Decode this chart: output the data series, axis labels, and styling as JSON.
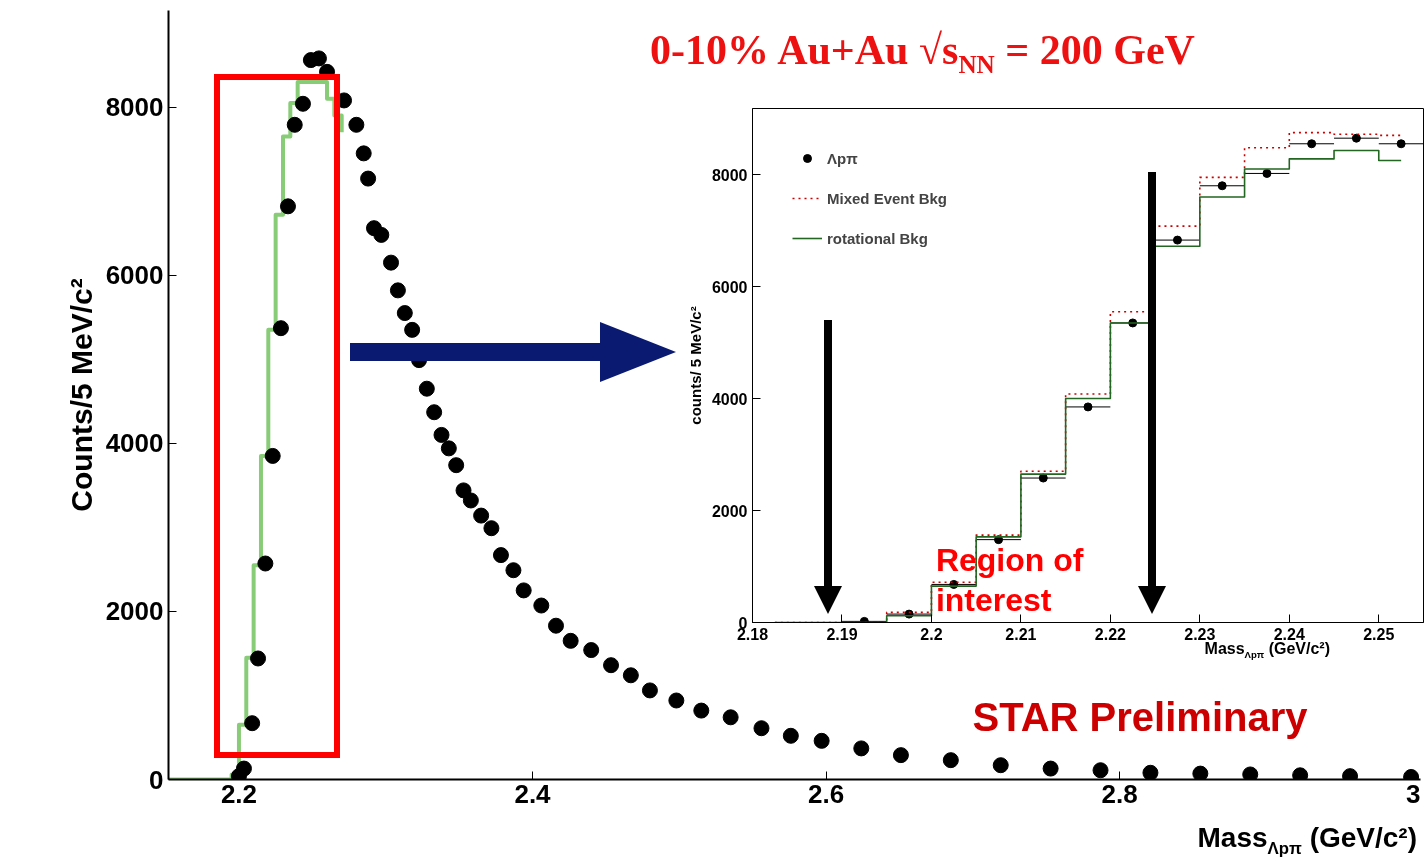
{
  "chart_data": [
    {
      "type": "scatter",
      "title": "0-10% Au+Au √s$_{NN}$ = 200 GeV",
      "xlabel": "Mass$_{Λpπ}$ (GeV/c²)",
      "ylabel": "Counts/5 MeV/c²",
      "xlim": [
        2.152,
        3.005
      ],
      "ylim": [
        0,
        9150
      ],
      "xticks": [
        2.2,
        2.4,
        2.6,
        2.8,
        3
      ],
      "yticks": [
        0,
        2000,
        4000,
        6000,
        8000
      ],
      "grid": false,
      "legend": false,
      "annotations": [
        "STAR Preliminary"
      ],
      "series": [
        {
          "type": "step",
          "color": "#88cc77",
          "x": [
            2.152,
            2.195,
            2.2,
            2.205,
            2.21,
            2.215,
            2.22,
            2.225,
            2.23,
            2.235,
            2.24,
            2.245,
            2.25,
            2.255,
            2.26,
            2.265,
            2.27
          ],
          "values": [
            0,
            60,
            650,
            1450,
            2550,
            3850,
            5350,
            6720,
            7650,
            8050,
            8300,
            8300,
            8300,
            8300,
            8100,
            7900,
            7700
          ]
        },
        {
          "color": "#000000",
          "marker": "circle",
          "x": [
            2.2,
            2.2034,
            2.209,
            2.213,
            2.218,
            2.223,
            2.2286,
            2.2334,
            2.238,
            2.2436,
            2.249,
            2.2545,
            2.26,
            2.2716,
            2.28,
            2.285,
            2.288,
            2.292,
            2.297,
            2.3036,
            2.3083,
            2.313,
            2.318,
            2.3227,
            2.328,
            2.333,
            2.338,
            2.343,
            2.348,
            2.353,
            2.358,
            2.365,
            2.372,
            2.3785,
            2.387,
            2.394,
            2.406,
            2.416,
            2.426,
            2.44,
            2.4535,
            2.467,
            2.48,
            2.498,
            2.515,
            2.535,
            2.556,
            2.576,
            2.597,
            2.624,
            2.651,
            2.685,
            2.719,
            2.753,
            2.787,
            2.821,
            2.855,
            2.889,
            2.923,
            2.957,
            2.9986
          ],
          "values": [
            40,
            130,
            670,
            1440,
            2570,
            3850,
            5370,
            6820,
            7790,
            8040,
            8560,
            8580,
            8420,
            8080,
            7790,
            7450,
            7150,
            6560,
            6480,
            6150,
            5820,
            5550,
            5350,
            4990,
            4650,
            4370,
            4100,
            3940,
            3740,
            3440,
            3320,
            3140,
            2990,
            2670,
            2490,
            2250,
            2070,
            1830,
            1650,
            1540,
            1360,
            1240,
            1060,
            940,
            820,
            740,
            610,
            520,
            460,
            370,
            290,
            230,
            170,
            130,
            110,
            80,
            70,
            60,
            50,
            40,
            30
          ]
        }
      ]
    },
    {
      "type": "scatter",
      "xlabel": "Mass$_{Λpπ}$ (GeV/c²)",
      "ylabel": "counts/ 5 MeV/c²",
      "xlim": [
        2.18,
        2.255
      ],
      "ylim": [
        0,
        9180
      ],
      "xticks": [
        2.18,
        2.19,
        2.2,
        2.21,
        2.22,
        2.23,
        2.24,
        2.25
      ],
      "yticks": [
        0,
        2000,
        4000,
        6000,
        8000
      ],
      "grid": false,
      "legend": "top left",
      "annotations": [
        "Region of interest"
      ],
      "series": [
        {
          "name": "Λpπ",
          "color": "#000000",
          "marker": "circle",
          "x": [
            2.1925,
            2.1975,
            2.2025,
            2.2075,
            2.2125,
            2.2175,
            2.2225,
            2.2275,
            2.2325,
            2.2375,
            2.2425,
            2.2475,
            2.2525
          ],
          "values": [
            20,
            150,
            680,
            1480,
            2580,
            3850,
            5350,
            6830,
            7800,
            8020,
            8550,
            8650,
            8550
          ],
          "xerrors": [
            0.0025,
            0.0025,
            0.0025,
            0.0025,
            0.0025,
            0.0025,
            0.0025,
            0.0025,
            0.0025,
            0.0025,
            0.0025,
            0.0025,
            0.0025
          ]
        },
        {
          "type": "step",
          "name": "Mixed Event Bkg",
          "color": "#cc0000",
          "line_style": "dotted",
          "x": [
            2.1825,
            2.1875,
            2.1925,
            2.1975,
            2.2025,
            2.2075,
            2.2125,
            2.2175,
            2.2225,
            2.2275,
            2.2325,
            2.2375,
            2.2425,
            2.2475,
            2.2525
          ],
          "values": [
            0,
            0,
            0,
            180,
            720,
            1560,
            2700,
            4080,
            5550,
            7080,
            7950,
            8480,
            8750,
            8720,
            8700
          ]
        },
        {
          "type": "step",
          "name": "rotational Bkg",
          "color": "#226622",
          "line_style": "solid",
          "x": [
            2.1825,
            2.1875,
            2.1925,
            2.1975,
            2.2025,
            2.2075,
            2.2125,
            2.2175,
            2.2225,
            2.2275,
            2.2325,
            2.2375,
            2.2425,
            2.2475,
            2.2525
          ],
          "values": [
            0,
            0,
            0,
            120,
            650,
            1530,
            2650,
            4000,
            5350,
            6720,
            7600,
            8100,
            8280,
            8430,
            8250
          ]
        }
      ]
    }
  ]
}
